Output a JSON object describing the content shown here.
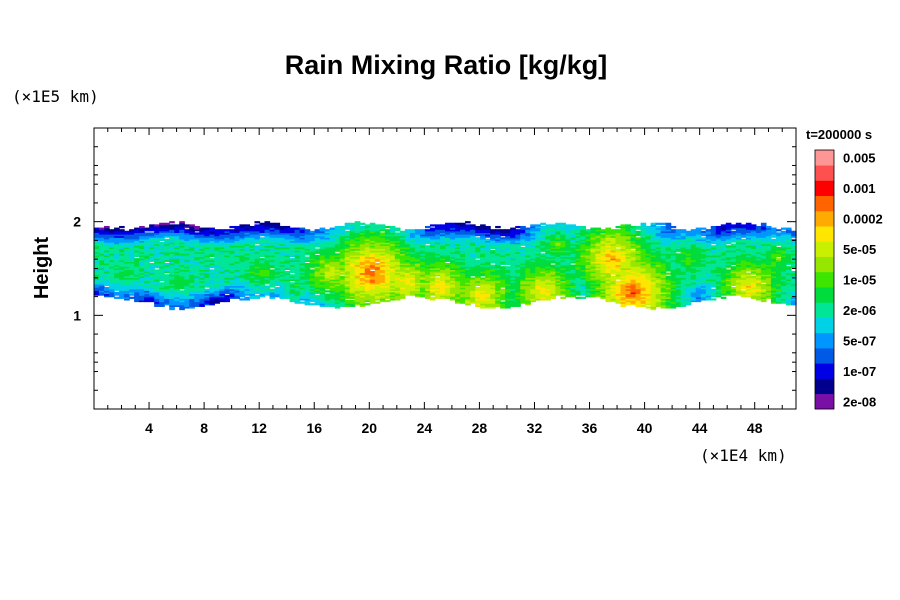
{
  "chart_data": {
    "type": "heatmap",
    "title": "Rain Mixing Ratio [kg/kg]",
    "ylabel": "Height",
    "y_unit": "(×1E5 km)",
    "x_unit": "(×1E4 km)",
    "time_label": "t=200000 s",
    "xlim": [
      0,
      51
    ],
    "ylim": [
      0,
      3
    ],
    "x_ticks": [
      4,
      8,
      12,
      16,
      20,
      24,
      28,
      32,
      36,
      40,
      44,
      48
    ],
    "y_ticks": [
      1,
      2
    ],
    "colorbar": {
      "levels": [
        {
          "color": "#7a0fa8",
          "label": "2e-08"
        },
        {
          "color": "#00008c",
          "label": ""
        },
        {
          "color": "#0000e6",
          "label": "1e-07"
        },
        {
          "color": "#005ae6",
          "label": ""
        },
        {
          "color": "#0096ff",
          "label": "5e-07"
        },
        {
          "color": "#00d2e6",
          "label": ""
        },
        {
          "color": "#00e696",
          "label": "2e-06"
        },
        {
          "color": "#00dc3c",
          "label": ""
        },
        {
          "color": "#3ce600",
          "label": "1e-05"
        },
        {
          "color": "#96e600",
          "label": ""
        },
        {
          "color": "#c8f000",
          "label": "5e-05"
        },
        {
          "color": "#ffe600",
          "label": ""
        },
        {
          "color": "#ffaa00",
          "label": "0.0002"
        },
        {
          "color": "#ff6400",
          "label": ""
        },
        {
          "color": "#ff0000",
          "label": "0.001"
        },
        {
          "color": "#ff5050",
          "label": ""
        },
        {
          "color": "#ff9696",
          "label": "0.005"
        }
      ]
    },
    "field": {
      "band_bottom": 1.05,
      "band_top": 2.0,
      "cores": [
        {
          "x": 2.0,
          "y": 1.45,
          "level": 8
        },
        {
          "x": 6.0,
          "y": 1.35,
          "level": 8
        },
        {
          "x": 9.5,
          "y": 1.6,
          "level": 7
        },
        {
          "x": 12.0,
          "y": 1.45,
          "level": 9
        },
        {
          "x": 14.5,
          "y": 1.3,
          "level": 8
        },
        {
          "x": 17.0,
          "y": 1.45,
          "level": 11
        },
        {
          "x": 20.0,
          "y": 1.45,
          "level": 14
        },
        {
          "x": 22.5,
          "y": 1.35,
          "level": 12
        },
        {
          "x": 25.0,
          "y": 1.3,
          "level": 12
        },
        {
          "x": 28.0,
          "y": 1.2,
          "level": 12
        },
        {
          "x": 32.5,
          "y": 1.25,
          "level": 12
        },
        {
          "x": 33.5,
          "y": 1.75,
          "level": 9
        },
        {
          "x": 37.5,
          "y": 1.6,
          "level": 13
        },
        {
          "x": 39.0,
          "y": 1.25,
          "level": 14
        },
        {
          "x": 43.0,
          "y": 1.6,
          "level": 9
        },
        {
          "x": 47.5,
          "y": 1.3,
          "level": 12
        },
        {
          "x": 49.5,
          "y": 1.6,
          "level": 9
        }
      ]
    }
  }
}
